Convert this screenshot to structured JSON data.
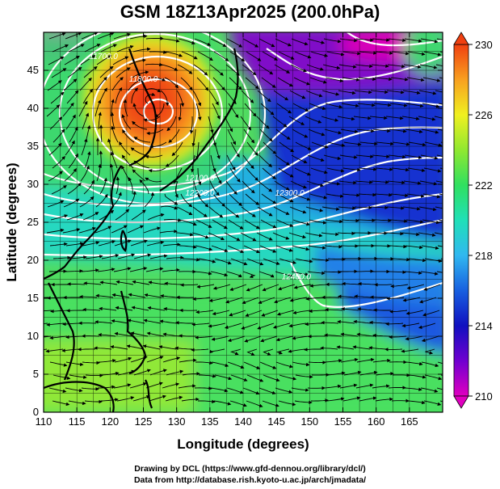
{
  "title": "GSM 18Z13Apr2025 (200.0hPa)",
  "credits": {
    "line1": "Drawing by DCL (https://www.gfd-dennou.org/library/dcl/)",
    "line2": "Data from http://database.rish.kyoto-u.ac.jp/arch/jmadata/"
  },
  "chart_data": {
    "type": "heatmap",
    "variable": "temperature with streamlines and height contours",
    "xlabel": "Longitude (degrees)",
    "ylabel": "Latitude  (degrees)",
    "xlim": [
      110,
      170
    ],
    "ylim": [
      0,
      50
    ],
    "x_ticks": [
      "110",
      "115",
      "120",
      "125",
      "130",
      "135",
      "140",
      "145",
      "150",
      "155",
      "160",
      "165"
    ],
    "y_ticks": [
      "0",
      "5",
      "10",
      "15",
      "20",
      "25",
      "30",
      "35",
      "40",
      "45"
    ],
    "colorbar": {
      "range": [
        210,
        230
      ],
      "tick_labels": [
        "210",
        "214",
        "218",
        "222",
        "226",
        "230"
      ],
      "colors": [
        "#e000c0",
        "#7000d0",
        "#1010c0",
        "#1860e0",
        "#30b8f0",
        "#20e0b8",
        "#30e060",
        "#90e830",
        "#f0f020",
        "#f8a020",
        "#f04010"
      ]
    },
    "warm_core": {
      "lon": 126,
      "lat": 41,
      "value": 229
    },
    "contour_labels": [
      {
        "text": "11700.0",
        "lon": 119,
        "lat": 46.5
      },
      {
        "text": "11800.0",
        "lon": 125,
        "lat": 43.5
      },
      {
        "text": "12100.0",
        "lon": 133.5,
        "lat": 30.5
      },
      {
        "text": "12200.0",
        "lon": 133.5,
        "lat": 28.5
      },
      {
        "text": "12300.0",
        "lon": 147,
        "lat": 28.5
      },
      {
        "text": "12400.0",
        "lon": 148,
        "lat": 17.5
      }
    ]
  }
}
